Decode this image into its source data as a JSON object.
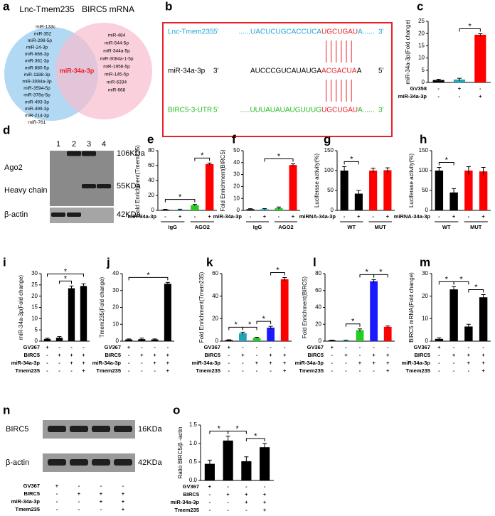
{
  "chart_data": [
    {
      "type": "venn",
      "label": "a",
      "sets": [
        "Lnc-Tmem235",
        "BIRC5 mRNA"
      ],
      "colors": [
        "#a9d5f3",
        "#f6bccd"
      ],
      "both_color": "#e8202a",
      "left_only": [
        "miR-133c",
        "miR-352",
        "miR-298-5p",
        "miR-24-3p",
        "miR-666-3p",
        "miR-361-3p",
        "miR-880-5p",
        "miR-1188-3p",
        "miR-3084a-3p",
        "miR-3594-5p",
        "miR-378a-5p",
        "miR-493-3p",
        "miR-499-3p",
        "miR-214-3p",
        "miR-761"
      ],
      "both": [
        "miR-34a-3p"
      ],
      "right_only": [
        "miR-484",
        "miR-544-5p",
        "miR-344a-5p",
        "miR-3084a-1-5p",
        "miR-1956-5p",
        "miR-145-5p",
        "miR-6334",
        "miR-668"
      ]
    },
    {
      "type": "sequence",
      "label": "b",
      "seed_color": "#e8202a",
      "border_color": "#e8202a",
      "rows": [
        {
          "name": "Lnc-Tmem235",
          "color": "#1fa5d8",
          "start": "5'",
          "left": "......UACUCUGCACCUCA",
          "seed": "UGCUGAU",
          "right": "A......",
          "end": "3'"
        },
        {
          "name": "miR-34a-3p",
          "color": "#000000",
          "start": "3'",
          "left": "AUCCCGUCAUAUGA",
          "seed": "ACGACUA",
          "right": "A",
          "end": "5'"
        },
        {
          "name": "BIRC5-3-UTR",
          "color": "#22bb22",
          "start": "5'",
          "left": ".....UUUAUAUAUGUUUG",
          "seed": "UGCUGAU",
          "right": "A......",
          "end": "3'"
        }
      ]
    },
    {
      "type": "bar",
      "label": "c",
      "y_label": "miR-34a-3p(Fold change)",
      "values": [
        1,
        1.2,
        19.5
      ],
      "errors": [
        0.3,
        0.5,
        0.4
      ],
      "colors": [
        "#000000",
        "#1fa5b5",
        "#ff0000"
      ],
      "ylim": [
        0,
        25
      ],
      "yticks": [
        0,
        5,
        10,
        15,
        20,
        25
      ],
      "conditions": [
        {
          "name": "GV358",
          "signs": [
            "-",
            "+",
            "-"
          ]
        },
        {
          "name": "miR-34a-3p",
          "signs": [
            "-",
            "-",
            "+"
          ]
        }
      ],
      "significance": [
        {
          "label": "*",
          "bars": [
            1,
            2
          ]
        }
      ]
    },
    {
      "type": "blot",
      "label": "d",
      "lanes": [
        "1",
        "2",
        "3",
        "4"
      ],
      "bands": [
        "Ago2",
        "Heavy chain",
        "β-actin"
      ],
      "sizes": [
        "106KDa",
        "55KDa",
        "42KDa"
      ]
    },
    {
      "type": "bar",
      "label": "e",
      "y_label": "Fold Enrichment(Tmem235)",
      "values": [
        1,
        1,
        7,
        62
      ],
      "errors": [
        0.4,
        0.5,
        1,
        1.5
      ],
      "colors": [
        "#000000",
        "#1fa5b5",
        "#22cc22",
        "#ff0000"
      ],
      "ylim": [
        0,
        80
      ],
      "yticks": [
        0,
        20,
        40,
        60,
        80
      ],
      "conditions": [
        {
          "name": "miR-34a-3p",
          "signs": [
            "-",
            "+",
            "-",
            "+"
          ]
        }
      ],
      "groups": [
        {
          "name": "IgG",
          "bars": [
            0,
            1
          ]
        },
        {
          "name": "AGO2",
          "bars": [
            2,
            3
          ]
        }
      ],
      "significance": [
        {
          "label": "*",
          "bars": [
            0,
            2
          ]
        },
        {
          "label": "*",
          "bars": [
            2,
            3
          ]
        }
      ]
    },
    {
      "type": "bar",
      "label": "f",
      "y_label": "Fold Enrichment(BIRC5)",
      "values": [
        1,
        1,
        2,
        38
      ],
      "errors": [
        0.4,
        0.5,
        0.8,
        1
      ],
      "colors": [
        "#000000",
        "#1fa5b5",
        "#22cc22",
        "#ff0000"
      ],
      "ylim": [
        0,
        50
      ],
      "yticks": [
        0,
        10,
        20,
        30,
        40,
        50
      ],
      "conditions": [
        {
          "name": "miR-34a-3p",
          "signs": [
            "-",
            "+",
            "-",
            "+"
          ]
        }
      ],
      "groups": [
        {
          "name": "IgG",
          "bars": [
            0,
            1
          ]
        },
        {
          "name": "AGO2",
          "bars": [
            2,
            3
          ]
        }
      ],
      "significance": [
        {
          "label": "*",
          "bars": [
            1,
            3
          ]
        }
      ]
    },
    {
      "type": "bar",
      "label": "g",
      "y_label": "Luciferase activity(%)",
      "values": [
        100,
        42,
        100,
        101
      ],
      "errors": [
        10,
        8,
        6,
        6
      ],
      "colors": [
        "#000000",
        "#000000",
        "#ff0000",
        "#ff0000"
      ],
      "ylim": [
        0,
        150
      ],
      "yticks": [
        0,
        50,
        100,
        150
      ],
      "conditions": [
        {
          "name": "miRNA-34a-3p",
          "signs": [
            "-",
            "+",
            "-",
            "+"
          ]
        }
      ],
      "groups": [
        {
          "name": "WT",
          "bars": [
            0,
            1
          ]
        },
        {
          "name": "MUT",
          "bars": [
            2,
            3
          ]
        }
      ],
      "significance": [
        {
          "label": "*",
          "bars": [
            0,
            1
          ]
        }
      ]
    },
    {
      "type": "bar",
      "label": "h",
      "y_label": "Luciferase activity(%)",
      "values": [
        100,
        45,
        100,
        98
      ],
      "errors": [
        8,
        10,
        10,
        10
      ],
      "colors": [
        "#000000",
        "#000000",
        "#ff0000",
        "#ff0000"
      ],
      "ylim": [
        0,
        150
      ],
      "yticks": [
        0,
        50,
        100,
        150
      ],
      "conditions": [
        {
          "name": "miRNA-34a-3p",
          "signs": [
            "-",
            "+",
            "-",
            "+"
          ]
        }
      ],
      "groups": [
        {
          "name": "WT",
          "bars": [
            0,
            1
          ]
        },
        {
          "name": "MUT",
          "bars": [
            2,
            3
          ]
        }
      ],
      "significance": [
        {
          "label": "*",
          "bars": [
            0,
            1
          ]
        }
      ]
    },
    {
      "type": "bar",
      "label": "i",
      "y_label": "miR-34a-3p(Fold change)",
      "values": [
        1,
        1.5,
        23.5,
        24.5
      ],
      "errors": [
        0.3,
        0.5,
        1,
        1
      ],
      "colors": [
        "#000000",
        "#000000",
        "#000000",
        "#000000"
      ],
      "ylim": [
        0,
        30
      ],
      "yticks": [
        0,
        5,
        10,
        15,
        20,
        25,
        30
      ],
      "conditions": [
        {
          "name": "GV367",
          "signs": [
            "+",
            "-",
            "-",
            "-"
          ]
        },
        {
          "name": "BIRC5",
          "signs": [
            "-",
            "+",
            "+",
            "+"
          ]
        },
        {
          "name": "miR-34a-3p",
          "signs": [
            "-",
            "-",
            "+",
            "+"
          ]
        },
        {
          "name": "Tmem235",
          "signs": [
            "-",
            "-",
            "-",
            "+"
          ]
        }
      ],
      "significance": [
        {
          "label": "*",
          "bars": [
            1,
            2
          ]
        },
        {
          "label": "*",
          "bars": [
            0,
            3
          ]
        }
      ]
    },
    {
      "type": "bar",
      "label": "j",
      "y_label": "Tmem235(Fold change)",
      "values": [
        1,
        1.2,
        1,
        34
      ],
      "errors": [
        0.3,
        0.6,
        0.3,
        0.8
      ],
      "colors": [
        "#000000",
        "#000000",
        "#000000",
        "#000000"
      ],
      "ylim": [
        0,
        40
      ],
      "yticks": [
        0,
        10,
        20,
        30,
        40
      ],
      "conditions": [
        {
          "name": "GV367",
          "signs": [
            "+",
            "-",
            "-",
            "-"
          ]
        },
        {
          "name": "BIRC5",
          "signs": [
            "-",
            "+",
            "+",
            "+"
          ]
        },
        {
          "name": "miR-34a-3p",
          "signs": [
            "-",
            "-",
            "+",
            "+"
          ]
        },
        {
          "name": "Tmem235",
          "signs": [
            "-",
            "-",
            "-",
            "+"
          ]
        }
      ],
      "significance": [
        {
          "label": "*",
          "bars": [
            0,
            3
          ]
        }
      ]
    },
    {
      "type": "bar",
      "label": "k",
      "y_label": "Fold Enrichment(Tmem235)",
      "values": [
        1,
        7,
        3,
        12,
        55
      ],
      "errors": [
        0.3,
        1,
        0.5,
        1.2,
        1.5
      ],
      "colors": [
        "#000000",
        "#1fa5b5",
        "#22cc22",
        "#1a1aff",
        "#ff0000"
      ],
      "ylim": [
        0,
        60
      ],
      "yticks": [
        0,
        20,
        40,
        60
      ],
      "conditions": [
        {
          "name": "GV367",
          "signs": [
            "+",
            "-",
            "-",
            "-",
            "-"
          ]
        },
        {
          "name": "BIRC5",
          "signs": [
            "-",
            "+",
            "-",
            "+",
            "+"
          ]
        },
        {
          "name": "miR-34a-3p",
          "signs": [
            "-",
            "-",
            "+",
            "+",
            "+"
          ]
        },
        {
          "name": "Tmem235",
          "signs": [
            "-",
            "-",
            "-",
            "-",
            "+"
          ]
        }
      ],
      "significance": [
        {
          "label": "*",
          "bars": [
            0,
            1
          ]
        },
        {
          "label": "*",
          "bars": [
            1,
            2
          ]
        },
        {
          "label": "*",
          "bars": [
            2,
            3
          ]
        },
        {
          "label": "*",
          "bars": [
            3,
            4
          ]
        }
      ]
    },
    {
      "type": "bar",
      "label": "l",
      "y_label": "Fold Enrichment(BIRC5)",
      "values": [
        1,
        1,
        13,
        71,
        17
      ],
      "errors": [
        0.3,
        0.3,
        1.5,
        2,
        1
      ],
      "colors": [
        "#000000",
        "#1fa5b5",
        "#22cc22",
        "#1a1aff",
        "#ff0000"
      ],
      "ylim": [
        0,
        80
      ],
      "yticks": [
        0,
        20,
        40,
        60,
        80
      ],
      "conditions": [
        {
          "name": "GV367",
          "signs": [
            "+",
            "-",
            "-",
            "-",
            "-"
          ]
        },
        {
          "name": "BIRC5",
          "signs": [
            "-",
            "+",
            "-",
            "+",
            "+"
          ]
        },
        {
          "name": "miR-34a-3p",
          "signs": [
            "-",
            "-",
            "+",
            "+",
            "+"
          ]
        },
        {
          "name": "Tmem235",
          "signs": [
            "-",
            "-",
            "-",
            "-",
            "+"
          ]
        }
      ],
      "significance": [
        {
          "label": "*",
          "bars": [
            1,
            2
          ]
        },
        {
          "label": "*",
          "bars": [
            2,
            3
          ]
        },
        {
          "label": "*",
          "bars": [
            3,
            4
          ]
        }
      ]
    },
    {
      "type": "bar",
      "label": "m",
      "y_label": "BIRC5 mRNA(Fold change)",
      "values": [
        1,
        23,
        6.5,
        19.5
      ],
      "errors": [
        0.5,
        1.2,
        1,
        1.2
      ],
      "colors": [
        "#000000",
        "#000000",
        "#000000",
        "#000000"
      ],
      "ylim": [
        0,
        30
      ],
      "yticks": [
        0,
        10,
        20,
        30
      ],
      "conditions": [
        {
          "name": "GV367",
          "signs": [
            "+",
            "-",
            "-",
            "-"
          ]
        },
        {
          "name": "BIRC5",
          "signs": [
            "-",
            "+",
            "+",
            "+"
          ]
        },
        {
          "name": "miR-34a-3p",
          "signs": [
            "-",
            "-",
            "+",
            "+"
          ]
        },
        {
          "name": "Tmem235",
          "signs": [
            "-",
            "-",
            "-",
            "+"
          ]
        }
      ],
      "significance": [
        {
          "label": "*",
          "bars": [
            0,
            1
          ]
        },
        {
          "label": "*",
          "bars": [
            1,
            2
          ]
        },
        {
          "label": "*",
          "bars": [
            2,
            3
          ]
        }
      ]
    },
    {
      "type": "blot",
      "label": "n",
      "bands": [
        "BIRC5",
        "β-actin"
      ],
      "sizes": [
        "16KDa",
        "42KDa"
      ],
      "conditions": [
        {
          "name": "GV367",
          "signs": [
            "+",
            "-",
            "-",
            "-"
          ]
        },
        {
          "name": "BIRC5",
          "signs": [
            "-",
            "+",
            "+",
            "+"
          ]
        },
        {
          "name": "miR-34a-3p",
          "signs": [
            "-",
            "-",
            "+",
            "+"
          ]
        },
        {
          "name": "Tmem235",
          "signs": [
            "-",
            "-",
            "-",
            "+"
          ]
        }
      ]
    },
    {
      "type": "bar",
      "label": "o",
      "y_label": "Ratio BIRC5/β -actin",
      "values": [
        0.45,
        1.08,
        0.52,
        0.9
      ],
      "errors": [
        0.1,
        0.12,
        0.12,
        0.1
      ],
      "colors": [
        "#000000",
        "#000000",
        "#000000",
        "#000000"
      ],
      "ylim": [
        0,
        1.5
      ],
      "yticks": [
        {
          "value": 0,
          "label": "0.0"
        },
        0.5,
        {
          "value": 1,
          "label": "1.0"
        },
        1.5
      ],
      "conditions": [
        {
          "name": "GV367",
          "signs": [
            "+",
            "-",
            "-",
            "-"
          ]
        },
        {
          "name": "BIRC5",
          "signs": [
            "-",
            "+",
            "+",
            "+"
          ]
        },
        {
          "name": "miR-34a-3p",
          "signs": [
            "-",
            "-",
            "+",
            "+"
          ]
        },
        {
          "name": "Tmem235",
          "signs": [
            "-",
            "-",
            "-",
            "+"
          ]
        }
      ],
      "significance": [
        {
          "label": "*",
          "bars": [
            0,
            1
          ]
        },
        {
          "label": "*",
          "bars": [
            1,
            2
          ]
        },
        {
          "label": "*",
          "bars": [
            2,
            3
          ]
        }
      ]
    }
  ]
}
